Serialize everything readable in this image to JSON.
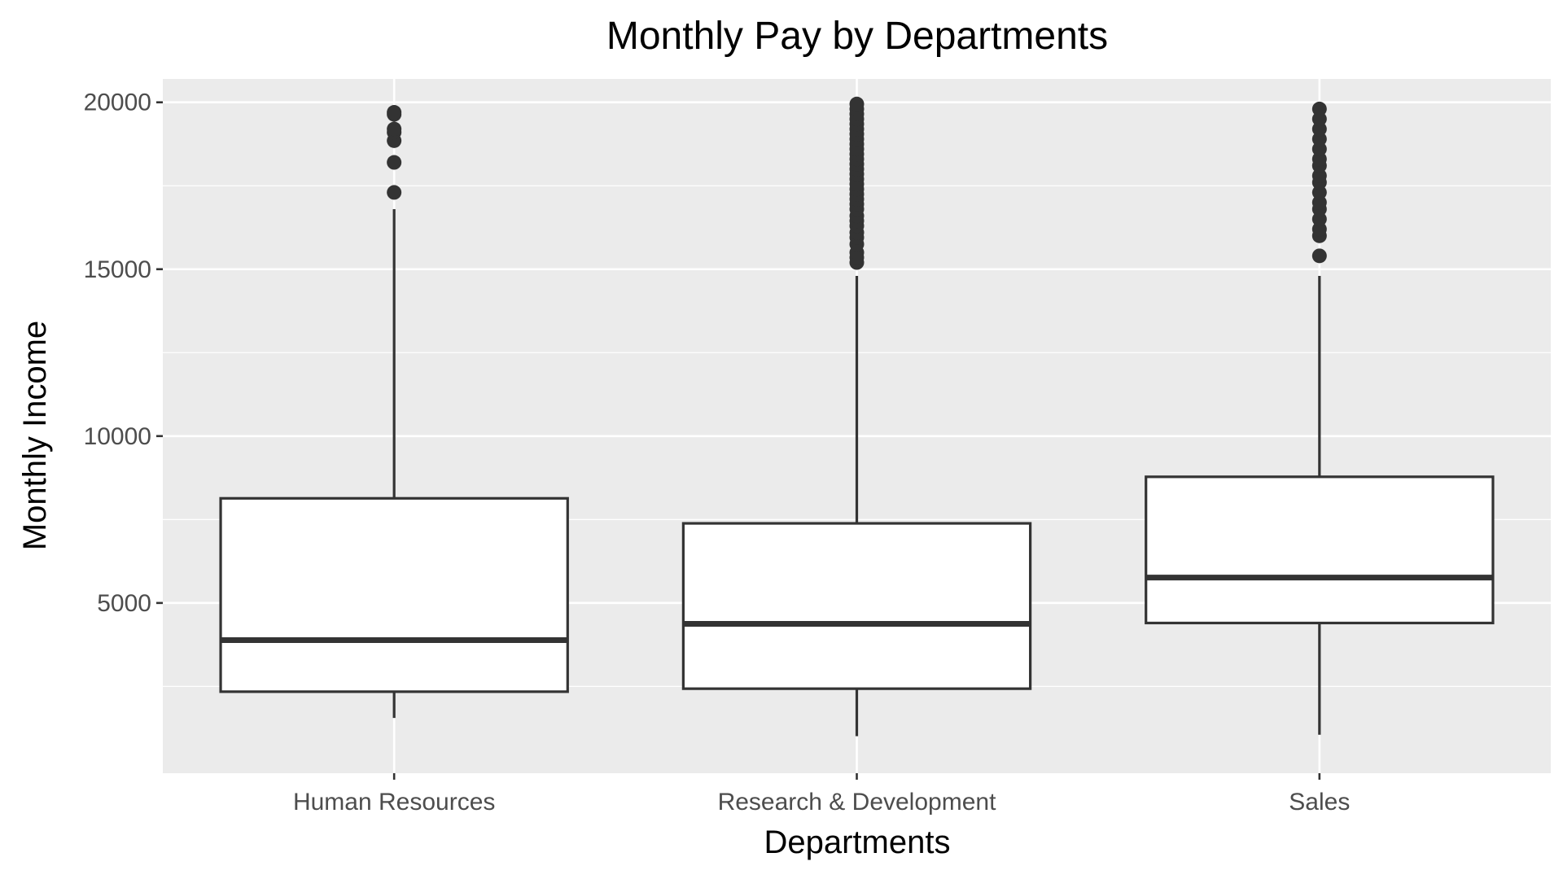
{
  "chart_data": {
    "type": "boxplot",
    "title": "Monthly Pay by Departments",
    "xlabel": "Departments",
    "ylabel": "Monthly Income",
    "ylim": [
      -100,
      20700
    ],
    "yticks": [
      5000,
      10000,
      15000,
      20000
    ],
    "grid": true,
    "legend": "none",
    "colors": {
      "panel": "#ebebeb",
      "grid": "#ffffff",
      "box_fill": "#ffffff",
      "stroke": "#333333"
    },
    "categories": [
      "Human Resources",
      "Research & Development",
      "Sales"
    ],
    "boxes": [
      {
        "category": "Human Resources",
        "whisker_low": 1555,
        "q1": 2342,
        "median": 3886,
        "q3": 8135,
        "whisker_high": 16800,
        "outliers": [
          17300,
          18200,
          18850,
          19100,
          19200,
          19640,
          19700
        ]
      },
      {
        "category": "Research & Development",
        "whisker_low": 1009,
        "q1": 2432,
        "median": 4374,
        "q3": 7385,
        "whisker_high": 14800,
        "outliers": [
          15200,
          15350,
          15500,
          15750,
          15950,
          16100,
          16300,
          16450,
          16600,
          16800,
          16950,
          17100,
          17250,
          17400,
          17550,
          17700,
          17850,
          18000,
          18150,
          18300,
          18450,
          18600,
          18750,
          18900,
          19050,
          19200,
          19350,
          19500,
          19650,
          19800,
          19950
        ]
      },
      {
        "category": "Sales",
        "whisker_low": 1052,
        "q1": 4400,
        "median": 5760,
        "q3": 8780,
        "whisker_high": 14800,
        "outliers": [
          15400,
          16000,
          16200,
          16500,
          16800,
          17000,
          17300,
          17600,
          17800,
          18100,
          18300,
          18600,
          18900,
          19200,
          19500,
          19800
        ]
      }
    ]
  }
}
